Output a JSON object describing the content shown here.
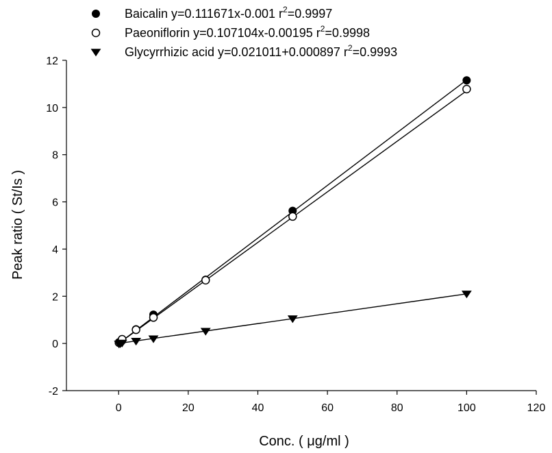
{
  "chart_data": {
    "type": "scatter",
    "xlabel": "Conc. ( μg/ml )",
    "ylabel": "Peak ratio ( St/Is )",
    "xlim": [
      -15,
      120
    ],
    "ylim": [
      -2,
      12
    ],
    "xticks": [
      0,
      20,
      40,
      60,
      80,
      100,
      120
    ],
    "yticks": [
      -2,
      0,
      2,
      4,
      6,
      8,
      10,
      12
    ],
    "grid": false,
    "legend_position": "top",
    "series": [
      {
        "name": "Baicalin",
        "equation": "y=0.111671x-0.001",
        "r2_label": "r",
        "r2_sup": "2",
        "r2_value": "=0.9997",
        "marker": "filled-circle",
        "fit": {
          "slope": 0.111671,
          "intercept": -0.001
        },
        "x": [
          0.1,
          0.5,
          1,
          5,
          10,
          25,
          50,
          100
        ],
        "y": [
          0.05,
          0.08,
          0.12,
          0.6,
          1.22,
          2.7,
          5.62,
          11.15
        ]
      },
      {
        "name": "Paeoniflorin",
        "equation": "y=0.107104x-0.00195",
        "r2_label": "r",
        "r2_sup": "2",
        "r2_value": "=0.9998",
        "marker": "open-circle",
        "fit": {
          "slope": 0.107104,
          "intercept": -0.00195
        },
        "x": [
          0.1,
          0.5,
          1,
          5,
          10,
          25,
          50,
          100
        ],
        "y": [
          0.03,
          0.05,
          0.18,
          0.58,
          1.1,
          2.68,
          5.38,
          10.78
        ]
      },
      {
        "name": "Glycyrrhizic acid",
        "equation": "y=0.021011+0.000897",
        "r2_label": "r",
        "r2_sup": "2",
        "r2_value": "=0.9993",
        "marker": "filled-triangle-down",
        "fit": {
          "slope": 0.021011,
          "intercept": 0.000897
        },
        "x": [
          0.1,
          0.5,
          1,
          5,
          10,
          25,
          50,
          100
        ],
        "y": [
          -0.02,
          -0.01,
          0.02,
          0.1,
          0.2,
          0.52,
          1.05,
          2.1
        ]
      }
    ]
  }
}
